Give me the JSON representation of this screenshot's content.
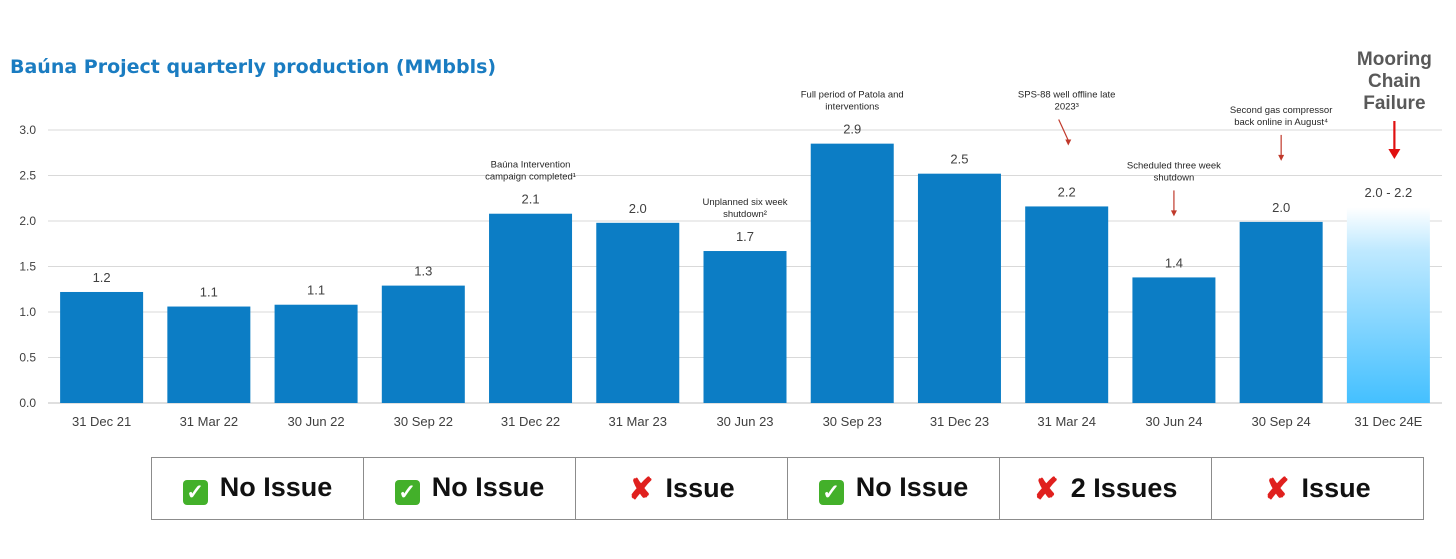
{
  "chart_data": {
    "type": "bar",
    "title": "Baúna Project quarterly production (MMbbls)",
    "categories": [
      "31 Dec 21",
      "31 Mar 22",
      "30 Jun 22",
      "30 Sep 22",
      "31 Dec 22",
      "31 Mar 23",
      "30 Jun 23",
      "30 Sep 23",
      "31 Dec 23",
      "31 Mar 24",
      "30 Jun 24",
      "30 Sep 24",
      "31 Dec 24E"
    ],
    "values": [
      1.22,
      1.06,
      1.08,
      1.29,
      2.08,
      1.98,
      1.67,
      2.85,
      2.52,
      2.16,
      1.38,
      1.99,
      2.15
    ],
    "value_labels": [
      "1.2",
      "1.1",
      "1.1",
      "1.3",
      "2.1",
      "2.0",
      "1.7",
      "2.9",
      "2.5",
      "2.2",
      "1.4",
      "2.0",
      "2.0 - 2.2"
    ],
    "estimate_range": [
      2.0,
      2.2
    ],
    "ylim": [
      0,
      3.0
    ],
    "yticks": [
      "0.0",
      "0.5",
      "1.0",
      "1.5",
      "2.0",
      "2.5",
      "3.0"
    ],
    "grid": true,
    "xlabel": "",
    "ylabel": "",
    "colors": {
      "bar": "#0c7dc5",
      "estimate_top": "#ffffff",
      "estimate_bottom": "#44c0ff",
      "grid": "#d9d9d9",
      "arrow_small": "#c0392b",
      "arrow_big": "#e01010"
    },
    "annotations": [
      {
        "category": "31 Dec 22",
        "lines": [
          "Baúna Intervention",
          "campaign completed¹"
        ]
      },
      {
        "category": "30 Jun 23",
        "lines": [
          "Unplanned six week",
          "shutdown²"
        ]
      },
      {
        "category": "30 Sep 23",
        "lines": [
          "Full period of Patola and",
          "interventions"
        ]
      },
      {
        "category": "31 Mar 24",
        "lines": [
          "SPS-88 well offline late",
          "2023³"
        ],
        "arrow": true
      },
      {
        "category": "30 Jun 24",
        "lines": [
          "Scheduled three week",
          "shutdown"
        ],
        "arrow": true
      },
      {
        "category": "30 Sep 24",
        "lines": [
          "Second gas compressor",
          "back online in August⁴"
        ],
        "arrow": true
      },
      {
        "category": "31 Dec 24E",
        "lines": [
          "Mooring",
          "Chain",
          "Failure"
        ],
        "arrow": true,
        "emphasis": true
      }
    ]
  },
  "status_row": [
    {
      "label": "No Issue",
      "icon": "check-icon"
    },
    {
      "label": "No Issue",
      "icon": "check-icon"
    },
    {
      "label": "Issue",
      "icon": "cross-icon"
    },
    {
      "label": "No Issue",
      "icon": "check-icon"
    },
    {
      "label": "2 Issues",
      "icon": "cross-icon"
    },
    {
      "label": "Issue",
      "icon": "cross-icon"
    }
  ]
}
